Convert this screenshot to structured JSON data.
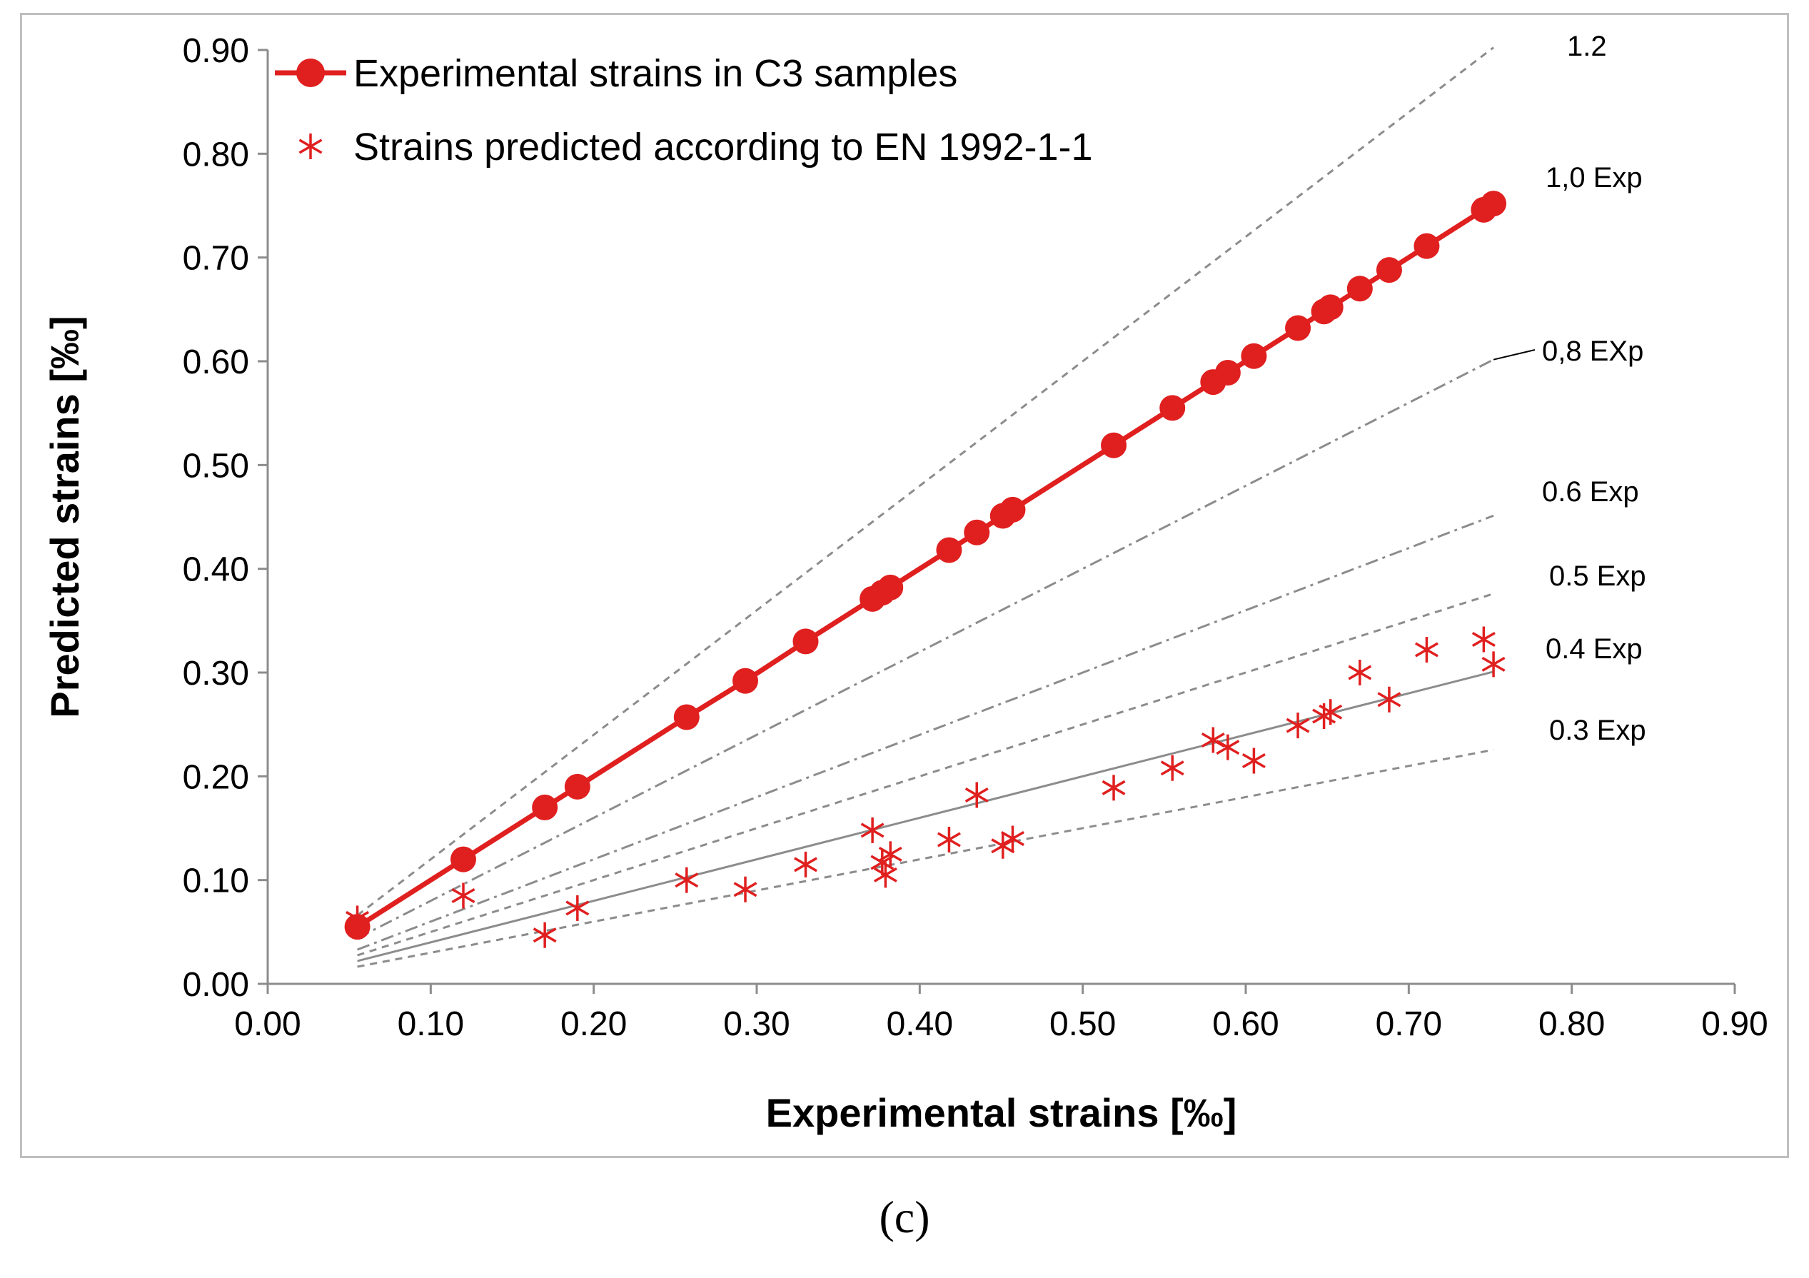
{
  "panel_label": "(c)",
  "chart_data": {
    "type": "scatter",
    "title": "",
    "xlabel": "Experimental strains [‰]",
    "ylabel": "Predicted strains [‰]",
    "xlim": [
      0,
      0.9
    ],
    "ylim": [
      0,
      0.9
    ],
    "xticks": [
      "0.00",
      "0.10",
      "0.20",
      "0.30",
      "0.40",
      "0.50",
      "0.60",
      "0.70",
      "0.80",
      "0.90"
    ],
    "yticks": [
      "0.00",
      "0.10",
      "0.20",
      "0.30",
      "0.40",
      "0.50",
      "0.60",
      "0.70",
      "0.80",
      "0.90"
    ],
    "grid": false,
    "legend_position": "top-left",
    "colors": {
      "series": "#e01f1f",
      "reference": "#8c8c8c"
    },
    "reference_lines": [
      {
        "label": "1.2",
        "factor": 1.2,
        "style": "dashed"
      },
      {
        "label": "1,0 Exp",
        "factor": 1.0,
        "style": "solid"
      },
      {
        "label": "0,8 EXp",
        "factor": 0.8,
        "style": "dashdot"
      },
      {
        "label": "0.6 Exp",
        "factor": 0.6,
        "style": "dashdot"
      },
      {
        "label": "0.5 Exp",
        "factor": 0.5,
        "style": "dashed"
      },
      {
        "label": "0.4 Exp",
        "factor": 0.4,
        "style": "solid"
      },
      {
        "label": "0.3 Exp",
        "factor": 0.3,
        "style": "dashed"
      }
    ],
    "series": [
      {
        "name": "Experimental strains in C3 samples",
        "marker": "circle",
        "line": true,
        "points": [
          [
            0.055,
            0.055
          ],
          [
            0.12,
            0.12
          ],
          [
            0.17,
            0.17
          ],
          [
            0.19,
            0.19
          ],
          [
            0.257,
            0.257
          ],
          [
            0.293,
            0.292
          ],
          [
            0.33,
            0.33
          ],
          [
            0.371,
            0.371
          ],
          [
            0.377,
            0.377
          ],
          [
            0.382,
            0.382
          ],
          [
            0.418,
            0.418
          ],
          [
            0.435,
            0.435
          ],
          [
            0.451,
            0.451
          ],
          [
            0.457,
            0.457
          ],
          [
            0.519,
            0.519
          ],
          [
            0.555,
            0.555
          ],
          [
            0.58,
            0.58
          ],
          [
            0.589,
            0.589
          ],
          [
            0.605,
            0.605
          ],
          [
            0.632,
            0.632
          ],
          [
            0.648,
            0.648
          ],
          [
            0.652,
            0.652
          ],
          [
            0.67,
            0.67
          ],
          [
            0.688,
            0.688
          ],
          [
            0.711,
            0.711
          ],
          [
            0.746,
            0.746
          ],
          [
            0.752,
            0.752
          ]
        ]
      },
      {
        "name": "Strains predicted according to EN 1992-1-1",
        "marker": "asterisk",
        "line": false,
        "points": [
          [
            0.055,
            0.063
          ],
          [
            0.12,
            0.085
          ],
          [
            0.17,
            0.047
          ],
          [
            0.19,
            0.073
          ],
          [
            0.257,
            0.1
          ],
          [
            0.293,
            0.091
          ],
          [
            0.33,
            0.115
          ],
          [
            0.371,
            0.148
          ],
          [
            0.377,
            0.117
          ],
          [
            0.379,
            0.105
          ],
          [
            0.382,
            0.125
          ],
          [
            0.418,
            0.139
          ],
          [
            0.435,
            0.182
          ],
          [
            0.451,
            0.133
          ],
          [
            0.457,
            0.14
          ],
          [
            0.519,
            0.189
          ],
          [
            0.555,
            0.208
          ],
          [
            0.58,
            0.235
          ],
          [
            0.589,
            0.228
          ],
          [
            0.605,
            0.215
          ],
          [
            0.632,
            0.249
          ],
          [
            0.648,
            0.258
          ],
          [
            0.652,
            0.262
          ],
          [
            0.67,
            0.3
          ],
          [
            0.688,
            0.274
          ],
          [
            0.711,
            0.322
          ],
          [
            0.746,
            0.332
          ],
          [
            0.752,
            0.308
          ]
        ]
      }
    ]
  }
}
